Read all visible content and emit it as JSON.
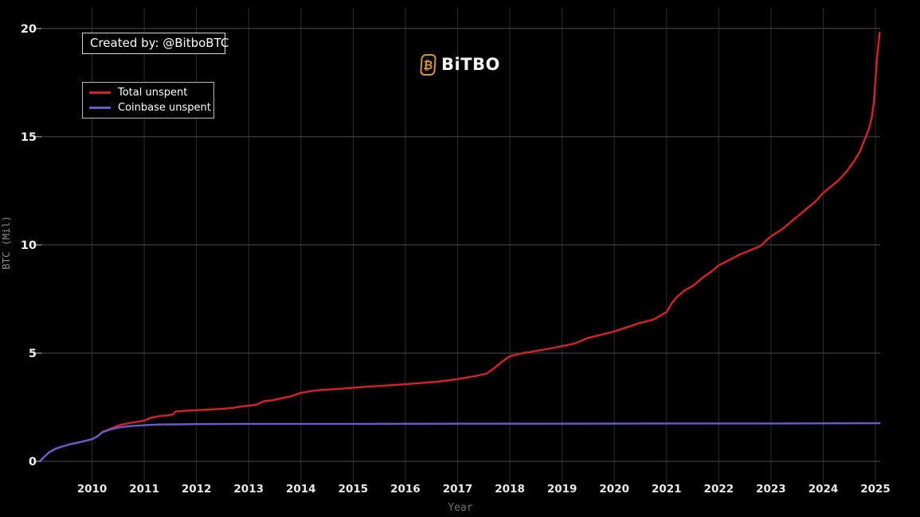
{
  "watermark": {
    "created_by": "Created by: @BitboBTC"
  },
  "logo": {
    "text": "BiTBO",
    "icon_glyph": "₿",
    "icon_color": "#d6953f"
  },
  "legend": [
    {
      "label": "Total unspent",
      "color": "#d62127"
    },
    {
      "label": "Coinbase unspent",
      "color": "#6a5acd"
    }
  ],
  "theme": {
    "background": "#000000",
    "grid_vertical": "#2d2d2d",
    "grid_horizontal": "#4b4b4b",
    "tick_mark": "#8f8f8f",
    "tick_text": "#ececec",
    "dim_text": "#7d7d7d"
  },
  "chart_data": {
    "type": "line",
    "title": "",
    "xlabel": "Year",
    "ylabel": "BTC (Mil)",
    "xlim": [
      2009.0,
      2025.1
    ],
    "ylim": [
      0,
      20
    ],
    "xticks": [
      2010,
      2011,
      2012,
      2013,
      2014,
      2015,
      2016,
      2017,
      2018,
      2019,
      2020,
      2021,
      2022,
      2023,
      2024,
      2025
    ],
    "yticks": [
      0,
      5,
      10,
      15,
      20
    ],
    "grid": true,
    "legend_position": "upper-left",
    "series": [
      {
        "name": "Total unspent",
        "color": "#d62127",
        "points": [
          [
            2009.0,
            0
          ],
          [
            2009.08,
            0.2
          ],
          [
            2009.17,
            0.4
          ],
          [
            2009.3,
            0.58
          ],
          [
            2009.45,
            0.7
          ],
          [
            2009.6,
            0.8
          ],
          [
            2009.8,
            0.9
          ],
          [
            2010.0,
            1.02
          ],
          [
            2010.1,
            1.15
          ],
          [
            2010.2,
            1.36
          ],
          [
            2010.35,
            1.5
          ],
          [
            2010.5,
            1.65
          ],
          [
            2010.7,
            1.76
          ],
          [
            2010.85,
            1.82
          ],
          [
            2011.0,
            1.88
          ],
          [
            2011.1,
            1.98
          ],
          [
            2011.15,
            2.03
          ],
          [
            2011.25,
            2.06
          ],
          [
            2011.3,
            2.1
          ],
          [
            2011.45,
            2.12
          ],
          [
            2011.55,
            2.17
          ],
          [
            2011.6,
            2.3
          ],
          [
            2011.75,
            2.33
          ],
          [
            2012.0,
            2.36
          ],
          [
            2012.3,
            2.4
          ],
          [
            2012.5,
            2.43
          ],
          [
            2012.7,
            2.47
          ],
          [
            2012.85,
            2.53
          ],
          [
            2013.0,
            2.57
          ],
          [
            2013.15,
            2.62
          ],
          [
            2013.28,
            2.77
          ],
          [
            2013.45,
            2.82
          ],
          [
            2013.6,
            2.9
          ],
          [
            2013.8,
            3.0
          ],
          [
            2014.0,
            3.16
          ],
          [
            2014.2,
            3.25
          ],
          [
            2014.4,
            3.3
          ],
          [
            2014.6,
            3.33
          ],
          [
            2014.8,
            3.36
          ],
          [
            2015.0,
            3.4
          ],
          [
            2015.3,
            3.45
          ],
          [
            2015.6,
            3.5
          ],
          [
            2016.0,
            3.56
          ],
          [
            2016.3,
            3.62
          ],
          [
            2016.6,
            3.68
          ],
          [
            2016.8,
            3.73
          ],
          [
            2017.0,
            3.8
          ],
          [
            2017.2,
            3.88
          ],
          [
            2017.4,
            3.97
          ],
          [
            2017.55,
            4.05
          ],
          [
            2017.7,
            4.3
          ],
          [
            2017.85,
            4.6
          ],
          [
            2018.0,
            4.85
          ],
          [
            2018.15,
            4.95
          ],
          [
            2018.3,
            5.02
          ],
          [
            2018.5,
            5.1
          ],
          [
            2018.75,
            5.2
          ],
          [
            2019.0,
            5.32
          ],
          [
            2019.25,
            5.45
          ],
          [
            2019.5,
            5.7
          ],
          [
            2019.75,
            5.85
          ],
          [
            2020.0,
            6.0
          ],
          [
            2020.25,
            6.2
          ],
          [
            2020.5,
            6.4
          ],
          [
            2020.75,
            6.55
          ],
          [
            2021.0,
            6.9
          ],
          [
            2021.1,
            7.3
          ],
          [
            2021.2,
            7.6
          ],
          [
            2021.35,
            7.9
          ],
          [
            2021.5,
            8.1
          ],
          [
            2021.7,
            8.5
          ],
          [
            2021.85,
            8.75
          ],
          [
            2022.0,
            9.05
          ],
          [
            2022.2,
            9.3
          ],
          [
            2022.4,
            9.55
          ],
          [
            2022.6,
            9.75
          ],
          [
            2022.8,
            9.95
          ],
          [
            2023.0,
            10.4
          ],
          [
            2023.2,
            10.7
          ],
          [
            2023.35,
            11.0
          ],
          [
            2023.5,
            11.3
          ],
          [
            2023.7,
            11.7
          ],
          [
            2023.85,
            12.0
          ],
          [
            2024.0,
            12.4
          ],
          [
            2024.15,
            12.7
          ],
          [
            2024.3,
            13.0
          ],
          [
            2024.45,
            13.4
          ],
          [
            2024.6,
            13.9
          ],
          [
            2024.7,
            14.3
          ],
          [
            2024.8,
            14.9
          ],
          [
            2024.88,
            15.4
          ],
          [
            2024.93,
            15.9
          ],
          [
            2024.97,
            16.6
          ],
          [
            2025.0,
            17.6
          ],
          [
            2025.03,
            18.6
          ],
          [
            2025.06,
            19.3
          ],
          [
            2025.08,
            19.8
          ]
        ]
      },
      {
        "name": "Coinbase unspent",
        "color": "#6a5acd",
        "points": [
          [
            2009.0,
            0
          ],
          [
            2009.08,
            0.2
          ],
          [
            2009.17,
            0.4
          ],
          [
            2009.3,
            0.58
          ],
          [
            2009.45,
            0.7
          ],
          [
            2009.6,
            0.8
          ],
          [
            2009.8,
            0.9
          ],
          [
            2010.0,
            1.02
          ],
          [
            2010.1,
            1.15
          ],
          [
            2010.2,
            1.34
          ],
          [
            2010.35,
            1.47
          ],
          [
            2010.5,
            1.56
          ],
          [
            2010.7,
            1.62
          ],
          [
            2011.0,
            1.67
          ],
          [
            2011.3,
            1.7
          ],
          [
            2011.6,
            1.71
          ],
          [
            2012.0,
            1.72
          ],
          [
            2013.0,
            1.73
          ],
          [
            2015.0,
            1.73
          ],
          [
            2017.0,
            1.74
          ],
          [
            2019.0,
            1.74
          ],
          [
            2021.0,
            1.75
          ],
          [
            2023.0,
            1.75
          ],
          [
            2025.08,
            1.76
          ]
        ]
      }
    ]
  }
}
